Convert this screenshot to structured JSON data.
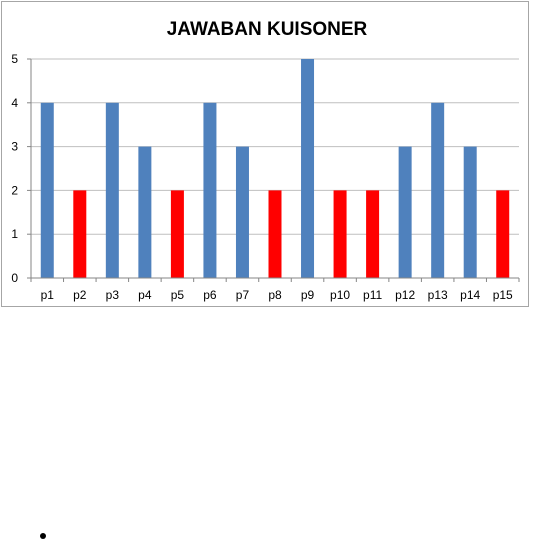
{
  "chart_data": {
    "type": "bar",
    "title": "JAWABAN KUISONER",
    "xlabel": "",
    "ylabel": "",
    "categories": [
      "p1",
      "p2",
      "p3",
      "p4",
      "p5",
      "p6",
      "p7",
      "p8",
      "p9",
      "p10",
      "p11",
      "p12",
      "p13",
      "p14",
      "p15"
    ],
    "values": [
      4,
      2,
      4,
      3,
      2,
      4,
      3,
      2,
      5,
      2,
      2,
      3,
      4,
      3,
      2
    ],
    "bar_colors": [
      "#4f81bd",
      "#ff0000",
      "#4f81bd",
      "#4f81bd",
      "#ff0000",
      "#4f81bd",
      "#4f81bd",
      "#ff0000",
      "#4f81bd",
      "#ff0000",
      "#ff0000",
      "#4f81bd",
      "#4f81bd",
      "#4f81bd",
      "#ff0000"
    ],
    "ylim": [
      0,
      5
    ],
    "yticks": [
      0,
      1,
      2,
      3,
      4,
      5
    ],
    "grid": true,
    "legend": "none"
  },
  "colors": {
    "gridline": "#bfbfbf",
    "axis": "#868686"
  }
}
